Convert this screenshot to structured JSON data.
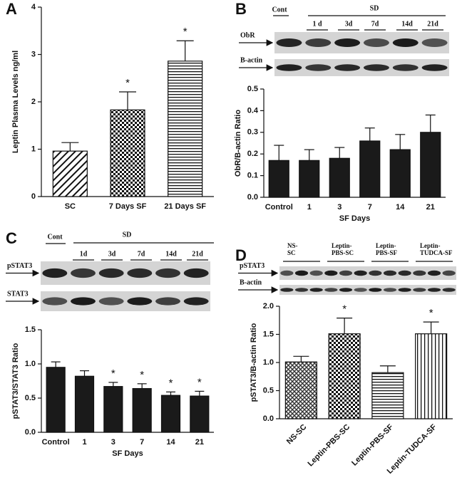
{
  "chart_data": [
    {
      "type": "bar",
      "panel_label": "A",
      "ylabel": "Leptin Plasma Levels ng/ml",
      "categories": [
        "SC",
        "7 Days SF",
        "21 Days SF"
      ],
      "values": [
        0.96,
        1.83,
        2.86
      ],
      "errors": [
        0.18,
        0.38,
        0.43
      ],
      "patterns": [
        "diagonal",
        "checker",
        "horizontal"
      ],
      "annotations": [
        {
          "category": 1,
          "text": "*"
        },
        {
          "category": 2,
          "text": "*"
        }
      ],
      "ylim": [
        0,
        4
      ],
      "yticks": [
        0,
        1,
        2,
        3,
        4
      ]
    },
    {
      "type": "bar",
      "panel_label": "B",
      "xlabel": "SF Days",
      "ylabel": "ObR/B-actin Ratio",
      "categories": [
        "Control",
        "1",
        "3",
        "7",
        "14",
        "21"
      ],
      "values": [
        0.17,
        0.17,
        0.18,
        0.26,
        0.22,
        0.3
      ],
      "errors": [
        0.07,
        0.05,
        0.05,
        0.06,
        0.07,
        0.08
      ],
      "color": "#1a1a1a",
      "ylim": [
        0,
        0.5
      ],
      "yticks": [
        {
          "value": 0,
          "label": "0.0"
        },
        0.1,
        0.2,
        0.3,
        0.4,
        0.5
      ],
      "blot": {
        "group_labels": [
          "Cont",
          "SD"
        ],
        "lane_labels": [
          "1 d",
          "3d",
          "7d",
          "14d",
          "21d"
        ],
        "rows": [
          "ObR",
          "B-actin"
        ]
      }
    },
    {
      "type": "bar",
      "panel_label": "C",
      "xlabel": "SF Days",
      "ylabel": "pSTAT3/STAT3 Ratio",
      "categories": [
        "Control",
        "1",
        "3",
        "7",
        "14",
        "21"
      ],
      "values": [
        0.95,
        0.82,
        0.67,
        0.64,
        0.54,
        0.53
      ],
      "errors": [
        0.08,
        0.08,
        0.06,
        0.07,
        0.05,
        0.07
      ],
      "color": "#1a1a1a",
      "annotations": [
        {
          "category": 2,
          "text": "*"
        },
        {
          "category": 3,
          "text": "*"
        },
        {
          "category": 4,
          "text": "*"
        },
        {
          "category": 5,
          "text": "*"
        }
      ],
      "ylim": [
        0,
        1.5
      ],
      "yticks": [
        {
          "value": 0,
          "label": "0.0"
        },
        0.5,
        {
          "value": 1,
          "label": "1.0"
        },
        1.5
      ],
      "blot": {
        "group_labels": [
          "Cont",
          "SD"
        ],
        "lane_labels": [
          "1d",
          "3d",
          "7d",
          "14d",
          "21d"
        ],
        "rows": [
          "pSTAT3",
          "STAT3"
        ]
      }
    },
    {
      "type": "bar",
      "panel_label": "D",
      "ylabel": "pSTAT3/B-actin Ratio",
      "categories": [
        "NS-SC",
        "Leptin-PBS-SC",
        "Leptin-PBS-SF",
        "Leptin-TUDCA-SF"
      ],
      "values": [
        1.01,
        1.51,
        0.82,
        1.51
      ],
      "errors": [
        0.1,
        0.28,
        0.12,
        0.21
      ],
      "patterns": [
        "crosshatch",
        "checker",
        "horizontal",
        "vertical"
      ],
      "annotations": [
        {
          "category": 1,
          "text": "*"
        },
        {
          "category": 3,
          "text": "*"
        }
      ],
      "ylim": [
        0,
        2
      ],
      "yticks": [
        {
          "value": 0,
          "label": "0.0"
        },
        0.5,
        {
          "value": 1,
          "label": "1.0"
        },
        1.5,
        {
          "value": 2,
          "label": "2.0"
        }
      ],
      "blot": {
        "group_lines": [
          [
            "NS-",
            "SC"
          ],
          [
            "Leptin-",
            "PBS-SC"
          ],
          [
            "Leptin-",
            "PBS-SF"
          ],
          [
            "Leptin-",
            "TUDCA-SF"
          ]
        ],
        "rows": [
          "pSTAT3",
          "B-actin"
        ]
      }
    }
  ]
}
